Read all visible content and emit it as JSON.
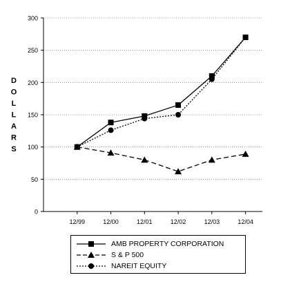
{
  "chart_data": {
    "type": "line",
    "title": "",
    "xlabel": "",
    "ylabel": "DOLLARS",
    "categories": [
      "12/99",
      "12/00",
      "12/01",
      "12/02",
      "12/03",
      "12/04"
    ],
    "ylim": [
      0,
      300
    ],
    "yticks": [
      0,
      50,
      100,
      150,
      200,
      250,
      300
    ],
    "grid": "horizontal dotted",
    "legend_position": "bottom",
    "series": [
      {
        "name": "AMB PROPERTY CORPORATION",
        "values": [
          100,
          138,
          148,
          165,
          210,
          270
        ],
        "marker": "square",
        "line": "solid",
        "color": "#000000"
      },
      {
        "name": "S & P 500",
        "values": [
          100,
          91,
          80,
          62,
          80,
          89
        ],
        "marker": "triangle",
        "line": "dashed",
        "color": "#000000"
      },
      {
        "name": "NAREIT EQUITY",
        "values": [
          100,
          126,
          144,
          150,
          205,
          270
        ],
        "marker": "circle",
        "line": "dotted",
        "color": "#000000"
      }
    ]
  }
}
